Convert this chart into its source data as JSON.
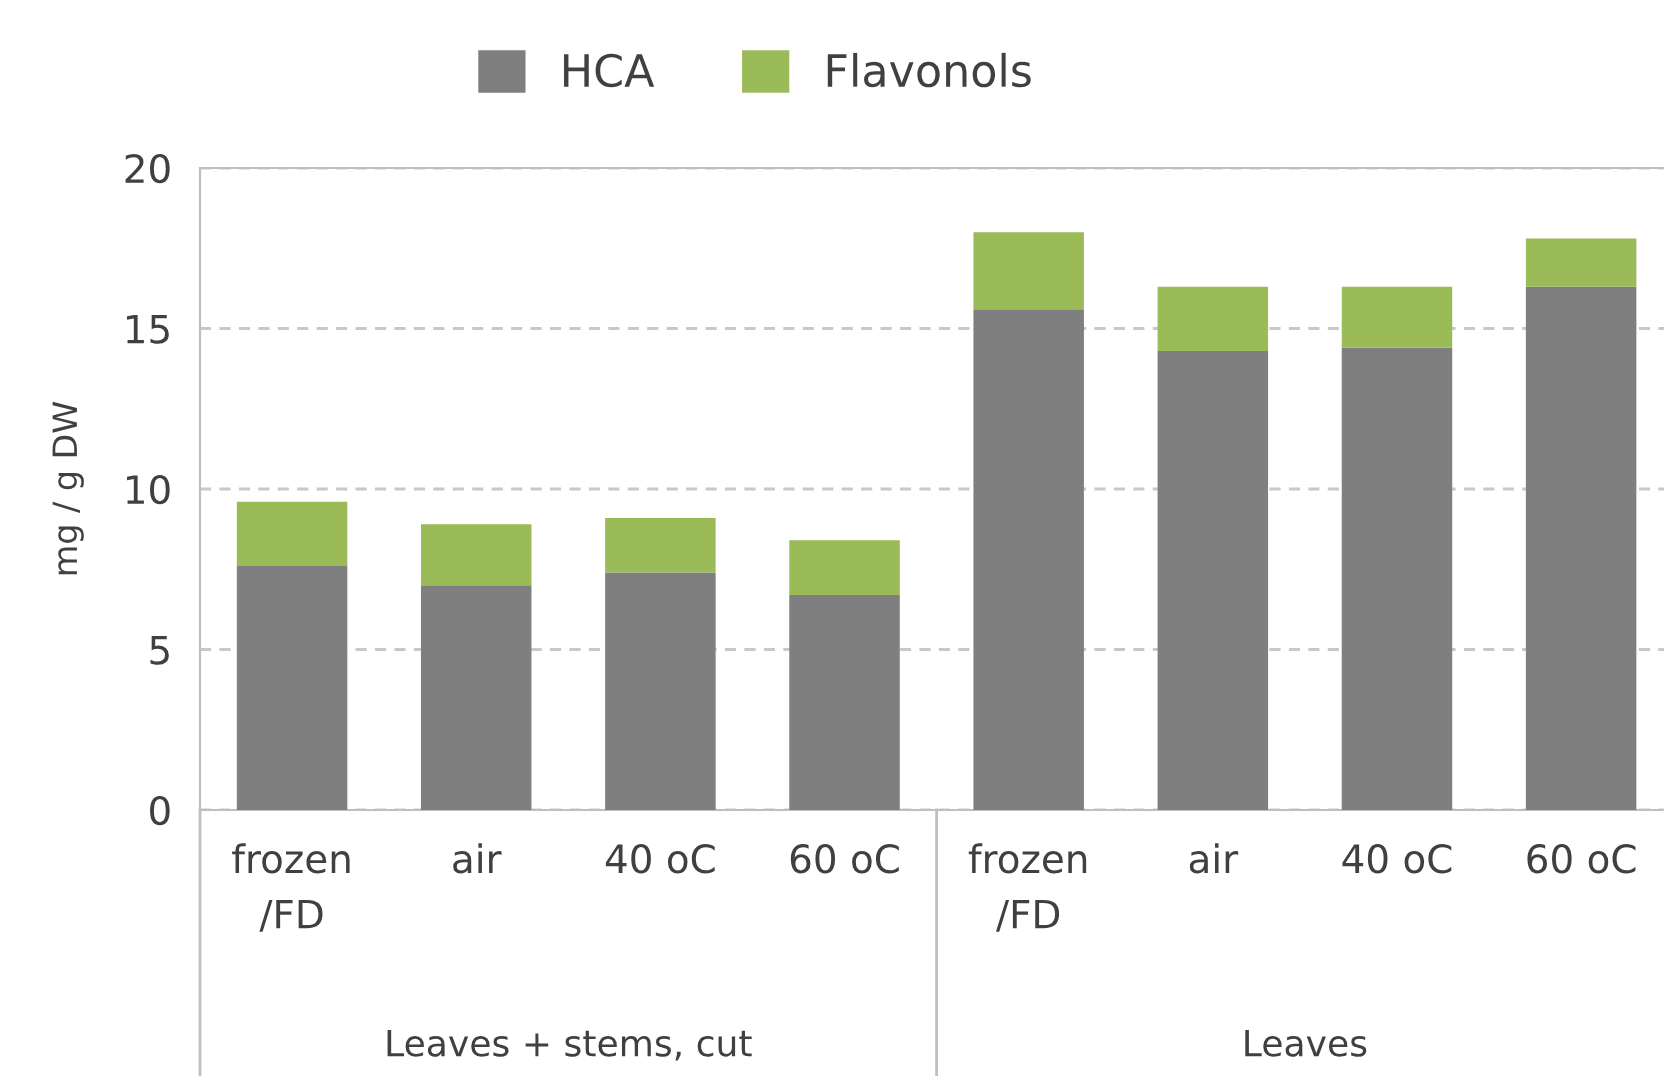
{
  "chart_data": {
    "type": "bar",
    "stacked": true,
    "categories": [
      "frozen\n/FD",
      "air",
      "40 oC",
      "60 oC",
      "frozen\n/FD",
      "air",
      "40 oC",
      "60 oC"
    ],
    "series": [
      {
        "name": "HCA",
        "color": "#7f7f7f",
        "values": [
          7.6,
          7.0,
          7.4,
          6.7,
          15.6,
          14.3,
          14.4,
          16.3
        ]
      },
      {
        "name": "Flavonols",
        "color": "#9bbb59",
        "values": [
          2.0,
          1.9,
          1.7,
          1.7,
          2.4,
          2.0,
          1.9,
          1.5
        ]
      }
    ],
    "ylabel": "mg / g DW",
    "ylim": [
      0,
      20
    ],
    "yticks": [
      0,
      5,
      10,
      15,
      20
    ],
    "grid": "y",
    "legend": "top",
    "annotations": [
      "Leaves + stems, cut",
      "Leaves"
    ]
  }
}
